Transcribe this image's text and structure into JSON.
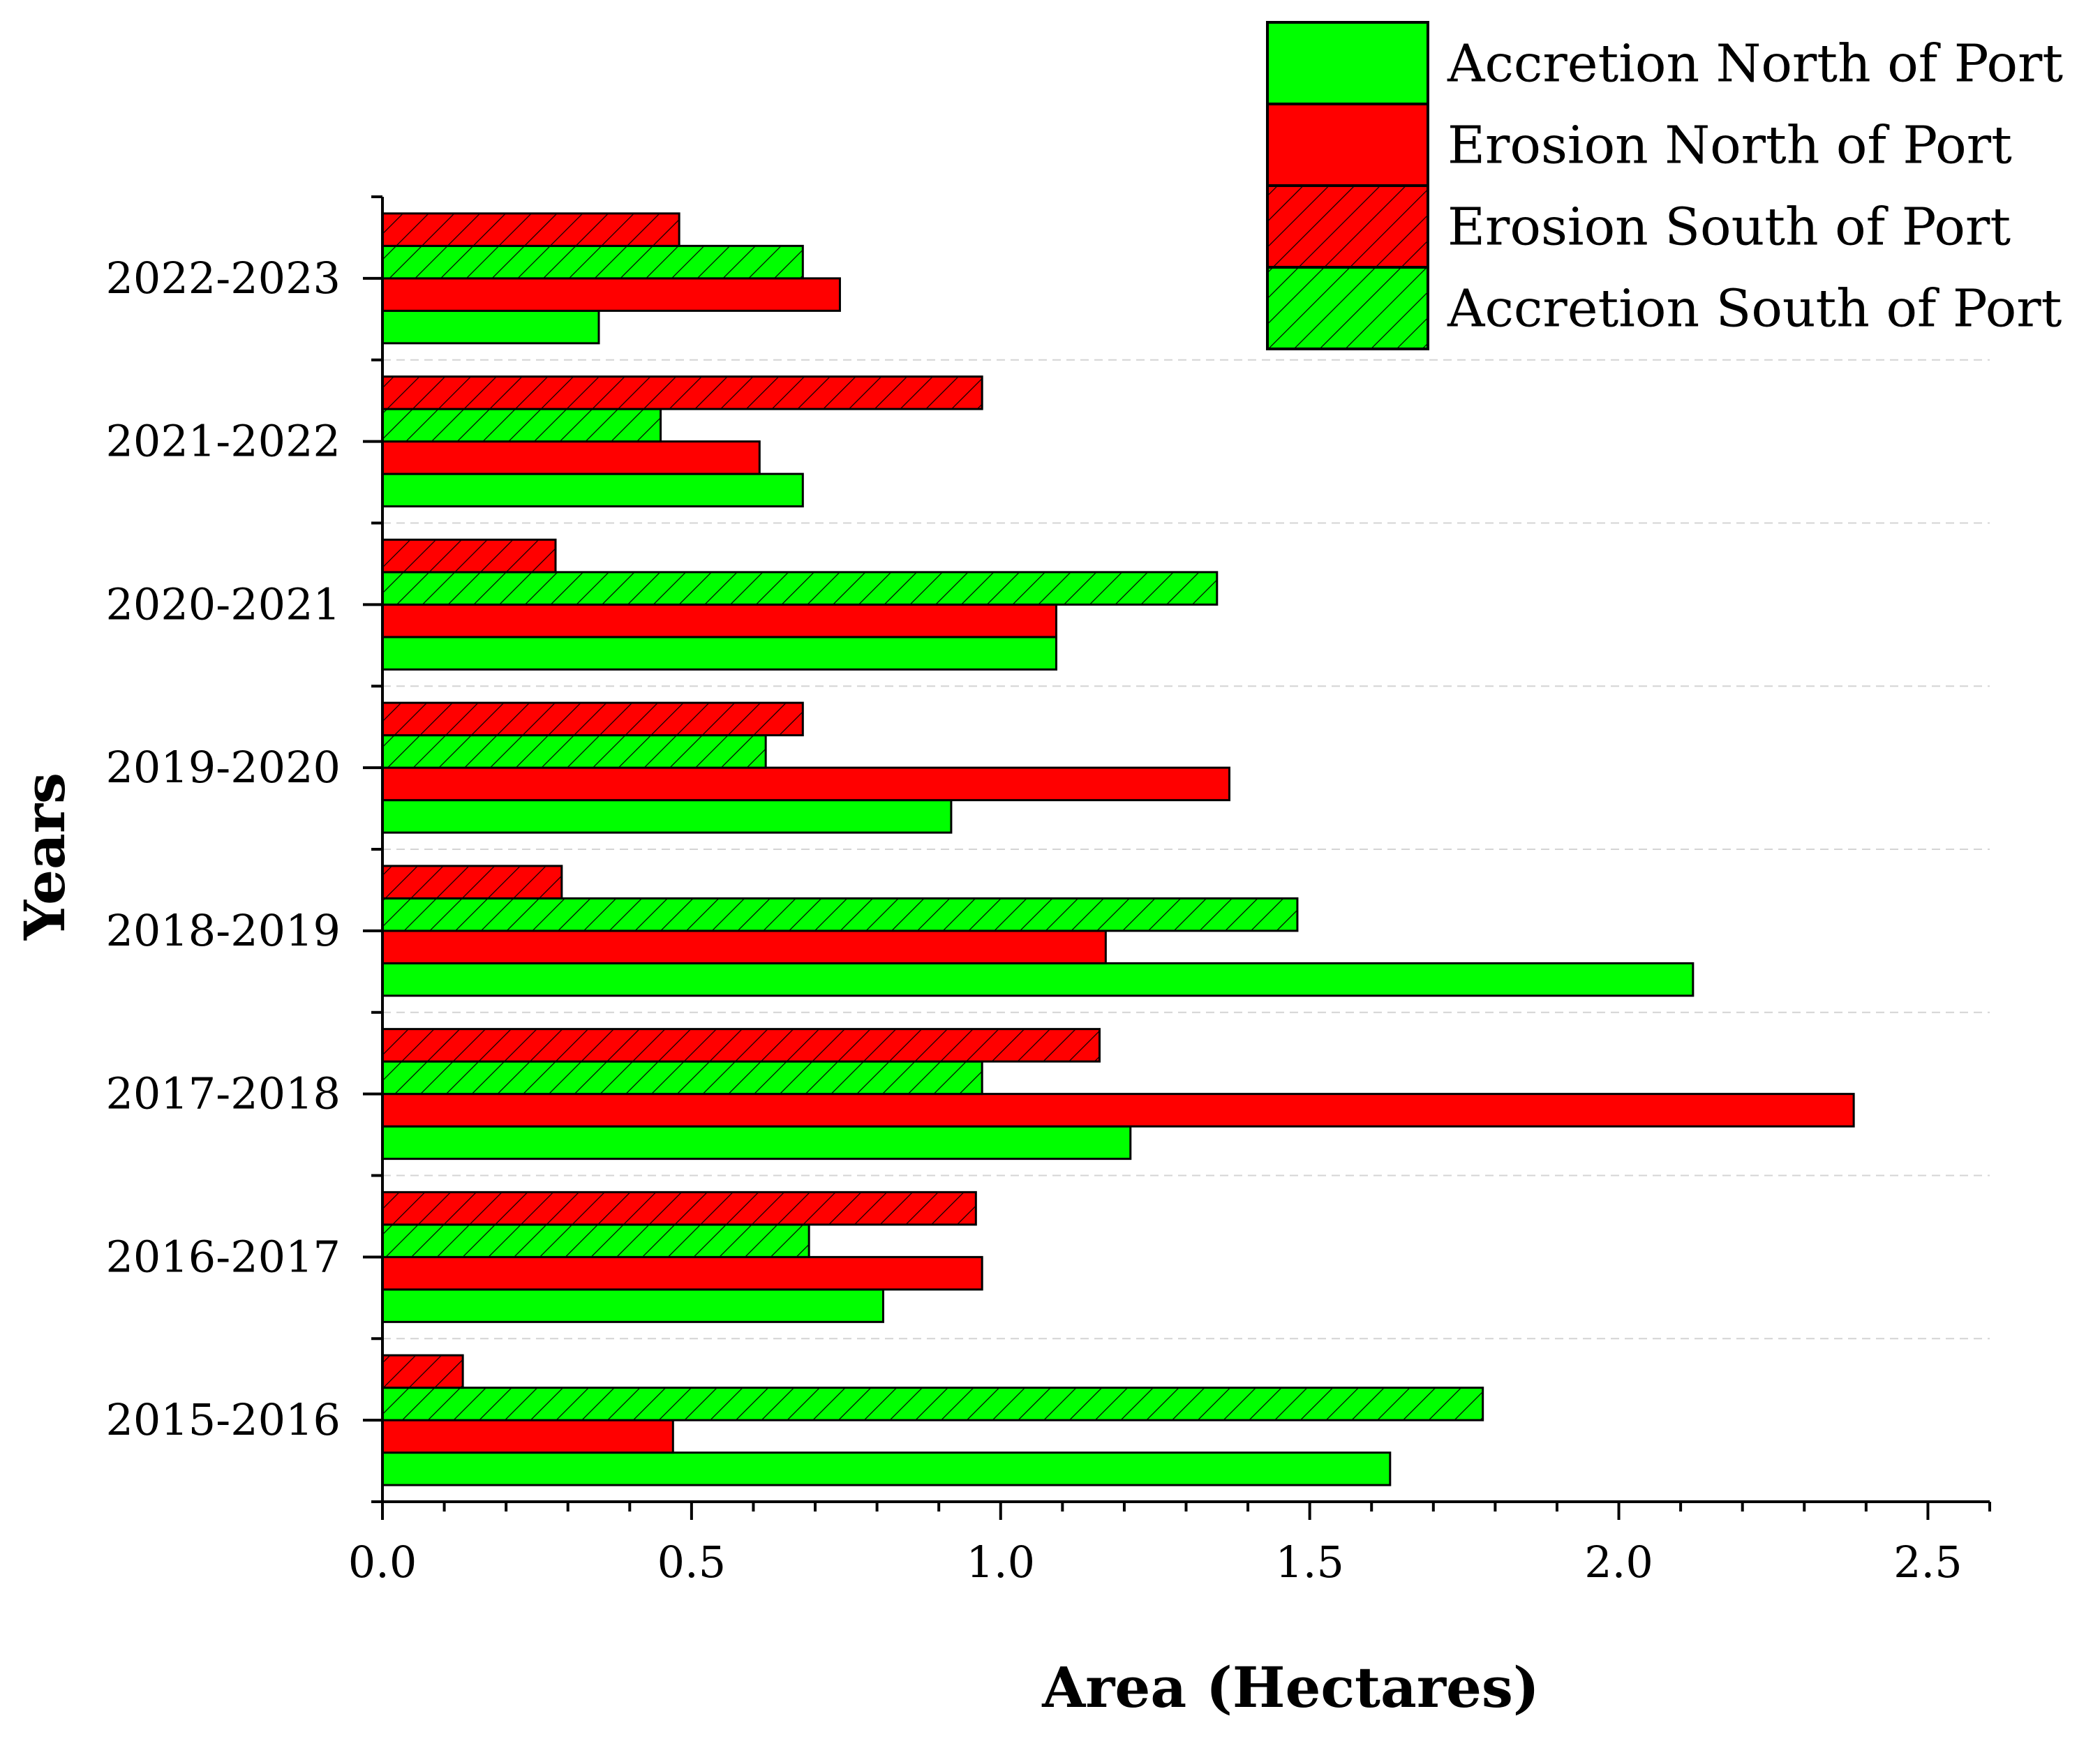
{
  "chart_data": {
    "type": "bar",
    "orientation": "horizontal",
    "categories": [
      "2015-2016",
      "2016-2017",
      "2017-2018",
      "2018-2019",
      "2019-2020",
      "2020-2021",
      "2021-2022",
      "2022-2023"
    ],
    "series": [
      {
        "name": "Accretion North of Port",
        "color": "#00ff00",
        "hatched": false,
        "values": [
          1.63,
          0.81,
          1.21,
          2.12,
          0.92,
          1.09,
          0.68,
          0.35
        ]
      },
      {
        "name": "Erosion North of Port",
        "color": "#ff0000",
        "hatched": false,
        "values": [
          0.47,
          0.97,
          2.38,
          1.17,
          1.37,
          1.09,
          0.61,
          0.74
        ]
      },
      {
        "name": "Accretion South of Port",
        "color": "#00ff00",
        "hatched": true,
        "values": [
          1.78,
          0.69,
          0.97,
          1.48,
          0.62,
          1.35,
          0.45,
          0.68
        ]
      },
      {
        "name": "Erosion South of Port",
        "color": "#ff0000",
        "hatched": true,
        "values": [
          0.13,
          0.96,
          1.16,
          0.29,
          0.68,
          0.28,
          0.97,
          0.48
        ]
      }
    ],
    "legend_order": [
      "Accretion North of Port",
      "Erosion North of Port",
      "Erosion South of Port",
      "Accretion South of Port"
    ],
    "legend_position": "top-right",
    "xlabel": "Area (Hectares)",
    "ylabel": "Years",
    "xlim": [
      0,
      2.6
    ],
    "xticks": [
      0.0,
      0.5,
      1.0,
      1.5,
      2.0,
      2.5
    ],
    "xtick_labels": [
      "0.0",
      "0.5",
      "1.0",
      "1.5",
      "2.0",
      "2.5"
    ],
    "grid": "dashed horizontal separators between categories"
  }
}
